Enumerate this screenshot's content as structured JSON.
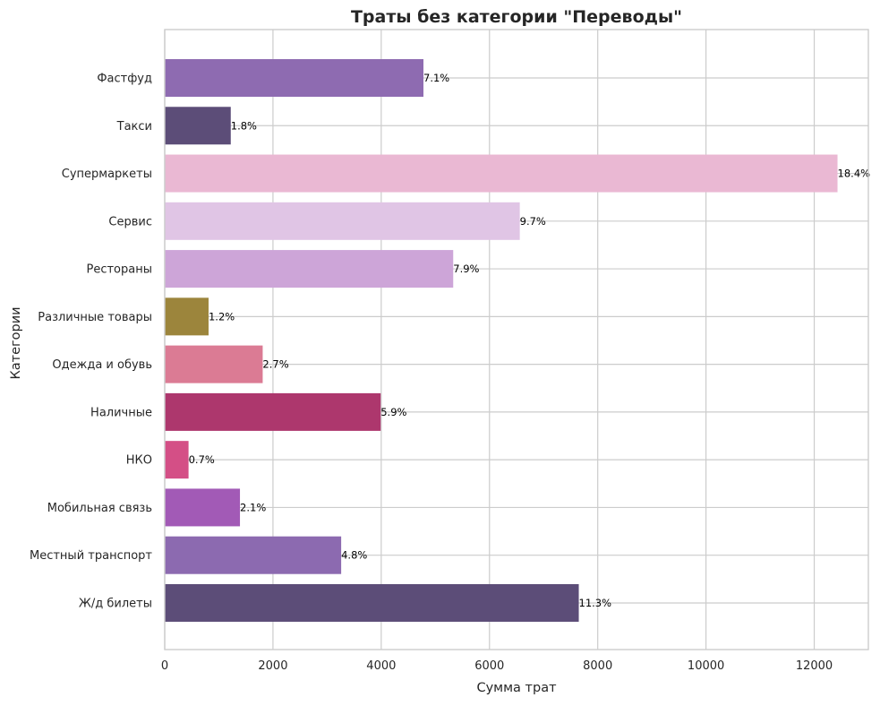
{
  "chart_data": {
    "type": "bar",
    "orientation": "horizontal",
    "title": "Траты без категории \"Переводы\"",
    "xlabel": "Сумма трат",
    "ylabel": "Категории",
    "xlim": [
      0,
      13000
    ],
    "xticks": [
      0,
      2000,
      4000,
      6000,
      8000,
      10000,
      12000
    ],
    "grid": true,
    "categories": [
      "Фастфуд",
      "Такси",
      "Супермаркеты",
      "Сервис",
      "Рестораны",
      "Различные товары",
      "Одежда и обувь",
      "Наличные",
      "НКО",
      "Мобильная связь",
      "Местный транспорт",
      "Ж/д билеты"
    ],
    "values": [
      4780,
      1220,
      12430,
      6560,
      5330,
      810,
      1810,
      3990,
      440,
      1390,
      3260,
      7650
    ],
    "labels": [
      "7.1%",
      "1.8%",
      "18.4%",
      "9.7%",
      "7.9%",
      "1.2%",
      "2.7%",
      "5.9%",
      "0.7%",
      "2.1%",
      "4.8%",
      "11.3%"
    ],
    "colors": [
      "#8e6bb1",
      "#5c4d78",
      "#eab8d3",
      "#e0c5e5",
      "#cda5d8",
      "#9c853c",
      "#db7b94",
      "#ad376d",
      "#d44f86",
      "#a25ab6",
      "#8c6ab0",
      "#5c4d78"
    ]
  }
}
